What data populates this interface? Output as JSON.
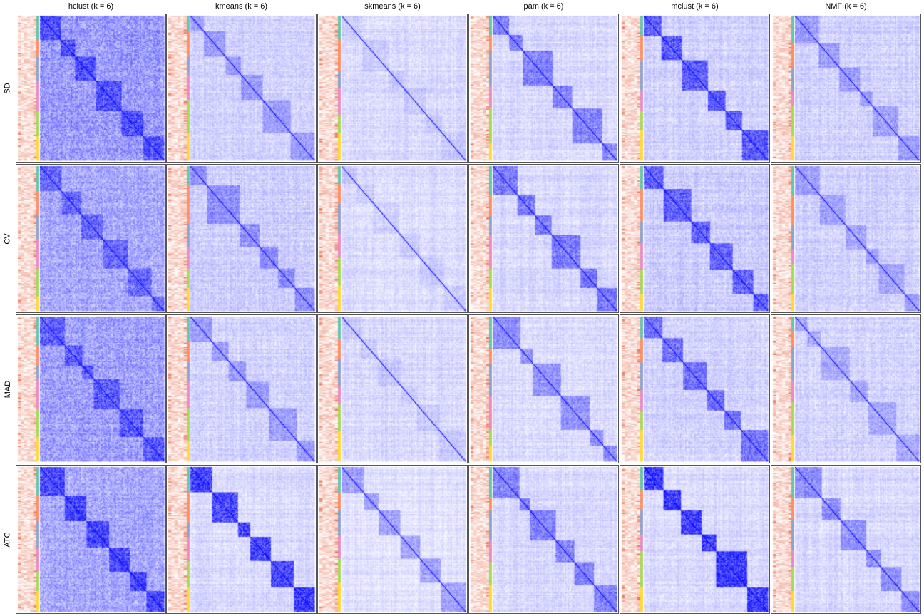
{
  "chart_data": {
    "type": "heatmap",
    "description": "Grid of consensus matrix heatmaps",
    "columns": [
      {
        "method": "hclust",
        "title": "hclust (k = 6)"
      },
      {
        "method": "kmeans",
        "title": "kmeans (k = 6)"
      },
      {
        "method": "skmeans",
        "title": "skmeans (k = 6)"
      },
      {
        "method": "pam",
        "title": "pam (k = 6)"
      },
      {
        "method": "mclust",
        "title": "mclust (k = 6)"
      },
      {
        "method": "NMF",
        "title": "NMF (k = 6)"
      }
    ],
    "rows": [
      {
        "label": "SD"
      },
      {
        "label": "CV"
      },
      {
        "label": "MAD"
      },
      {
        "label": "ATC"
      }
    ],
    "k": 6,
    "color_scale": {
      "low": "#ffffff",
      "high": "#0000ff"
    },
    "annotation_color_scale": {
      "low": "#ffffff",
      "high": "#e8603c"
    },
    "class_colors": [
      "#66c2a5",
      "#fc8d62",
      "#8da0cb",
      "#e78ac3",
      "#a6d854",
      "#ffd92f"
    ]
  }
}
